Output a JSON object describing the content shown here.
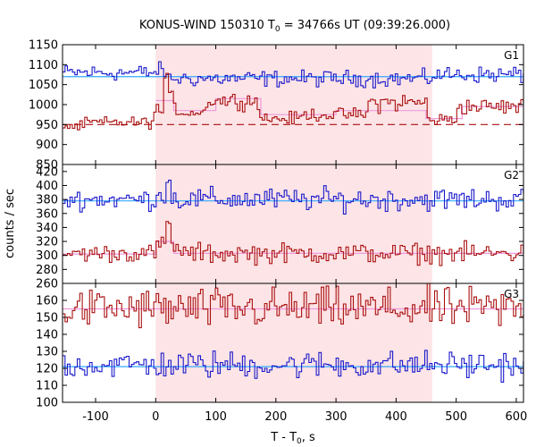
{
  "chart_data": {
    "type": "line",
    "title_prefix": "KONUS-WIND 150310 T",
    "title_sub": "0",
    "title_suffix": " = 34766s UT (09:39:26.000)",
    "xlabel_prefix": "T - T",
    "xlabel_sub": "0",
    "xlabel_suffix": ", s",
    "ylabel": "counts / sec",
    "xlim": [
      -155,
      612
    ],
    "xticks": [
      -100,
      0,
      100,
      200,
      300,
      400,
      500,
      600
    ],
    "shaded_interval": [
      0,
      460
    ],
    "colors": {
      "blue": "#1a1acc",
      "red": "#aa1111",
      "shade": "#fde4e6",
      "fit_blue": "#33aaff",
      "fit_red": "#ee99dd",
      "bg_red": "#aa1111"
    },
    "panels": [
      {
        "label": "G1",
        "ylim": [
          850,
          1150
        ],
        "yticks": [
          850,
          900,
          950,
          1000,
          1050,
          1100,
          1150
        ],
        "upper_series": {
          "segments": [
            {
              "x": [
                -155,
                0
              ],
              "y": 1080,
              "noise": 10
            },
            {
              "x": [
                0,
                15
              ],
              "y": 1085,
              "noise": 10
            },
            {
              "x": [
                15,
                460
              ],
              "y": 1065,
              "noise": 10
            },
            {
              "x": [
                460,
                612
              ],
              "y": 1075,
              "noise": 10
            }
          ],
          "fit_level": 1070
        },
        "lower_series": {
          "segments": [
            {
              "x": [
                -155,
                -120
              ],
              "y": 945,
              "noise": 6
            },
            {
              "x": [
                -120,
                -5
              ],
              "y": 955,
              "noise": 7
            },
            {
              "x": [
                -5,
                10
              ],
              "y": 985,
              "noise": 10
            },
            {
              "x": [
                10,
                20
              ],
              "y": 1060,
              "noise": 8
            },
            {
              "x": [
                20,
                30
              ],
              "y": 1020,
              "noise": 8
            },
            {
              "x": [
                30,
                80
              ],
              "y": 980,
              "noise": 6
            },
            {
              "x": [
                80,
                170
              ],
              "y": 1010,
              "noise": 10
            },
            {
              "x": [
                170,
                240
              ],
              "y": 965,
              "noise": 8
            },
            {
              "x": [
                240,
                350
              ],
              "y": 975,
              "noise": 8
            },
            {
              "x": [
                350,
                450
              ],
              "y": 1005,
              "noise": 12
            },
            {
              "x": [
                450,
                500
              ],
              "y": 962,
              "noise": 8
            },
            {
              "x": [
                500,
                612
              ],
              "y": 995,
              "noise": 10
            }
          ],
          "fit_steps": [
            {
              "x": [
                0,
                30
              ],
              "y": 1010
            },
            {
              "x": [
                30,
                100
              ],
              "y": 985
            },
            {
              "x": [
                100,
                175
              ],
              "y": 1015
            },
            {
              "x": [
                175,
                300
              ],
              "y": 975
            },
            {
              "x": [
                300,
                450
              ],
              "y": 985
            },
            {
              "x": [
                450,
                510
              ],
              "y": 965
            },
            {
              "x": [
                510,
                612
              ],
              "y": 995
            }
          ],
          "background_level": 950
        }
      },
      {
        "label": "G2",
        "ylim": [
          260,
          430
        ],
        "yticks": [
          260,
          280,
          300,
          320,
          340,
          360,
          380,
          400,
          420
        ],
        "upper_series": {
          "segments": [
            {
              "x": [
                -155,
                0
              ],
              "y": 380,
              "noise": 7
            },
            {
              "x": [
                0,
                15
              ],
              "y": 385,
              "noise": 6
            },
            {
              "x": [
                15,
                25
              ],
              "y": 408,
              "noise": 4
            },
            {
              "x": [
                25,
                612
              ],
              "y": 380,
              "noise": 8
            }
          ],
          "fit_level": 378
        },
        "lower_series": {
          "segments": [
            {
              "x": [
                -155,
                0
              ],
              "y": 303,
              "noise": 6
            },
            {
              "x": [
                0,
                15
              ],
              "y": 315,
              "noise": 6
            },
            {
              "x": [
                15,
                25
              ],
              "y": 345,
              "noise": 6
            },
            {
              "x": [
                25,
                40
              ],
              "y": 312,
              "noise": 5
            },
            {
              "x": [
                40,
                612
              ],
              "y": 303,
              "noise": 7
            }
          ],
          "fit_steps": [
            {
              "x": [
                -155,
                0
              ],
              "y": 302
            },
            {
              "x": [
                0,
                30
              ],
              "y": 320
            },
            {
              "x": [
                30,
                612
              ],
              "y": 303
            }
          ]
        }
      },
      {
        "label": "G3",
        "ylim": [
          100,
          170
        ],
        "yticks": [
          100,
          110,
          120,
          130,
          140,
          150,
          160
        ],
        "upper_series": {
          "segments": [
            {
              "x": [
                -155,
                612
              ],
              "y": 155,
              "noise": 6
            }
          ],
          "fit_steps": [
            {
              "x": [
                -155,
                612
              ],
              "y": 155
            }
          ]
        },
        "lower_series": {
          "segments": [
            {
              "x": [
                -155,
                612
              ],
              "y": 122,
              "noise": 4
            }
          ],
          "fit_level": 121
        }
      }
    ]
  }
}
